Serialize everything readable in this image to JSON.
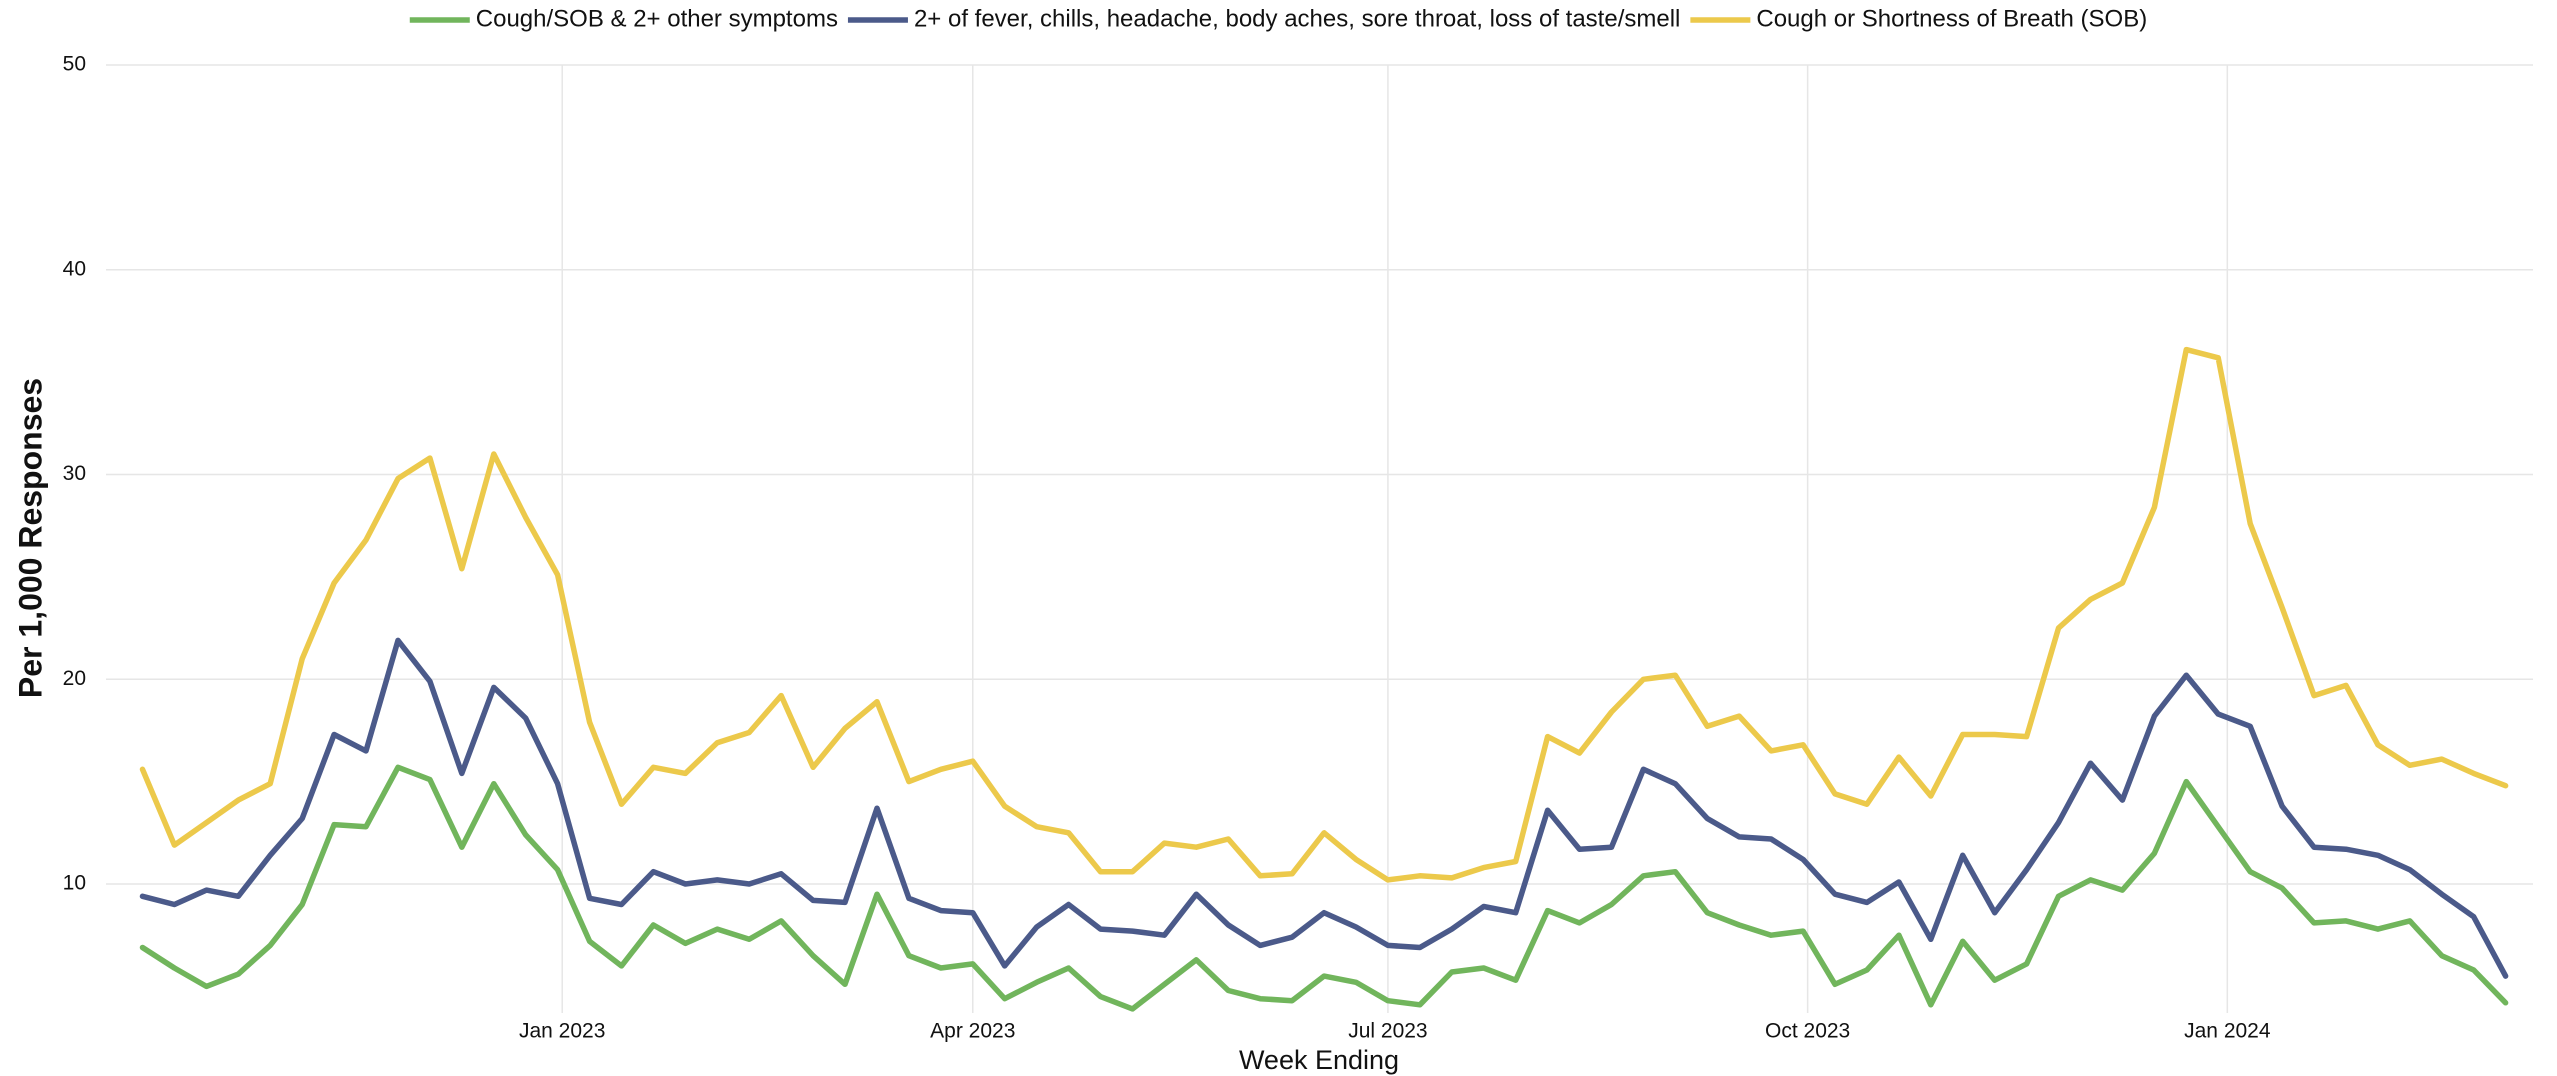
{
  "chart_data": {
    "type": "line",
    "x_label": "Week Ending",
    "y_label": "Per 1,000 Responses",
    "x": [
      "2022-10-01",
      "2022-10-08",
      "2022-10-15",
      "2022-10-22",
      "2022-10-29",
      "2022-11-05",
      "2022-11-12",
      "2022-11-19",
      "2022-11-26",
      "2022-12-03",
      "2022-12-10",
      "2022-12-17",
      "2022-12-24",
      "2022-12-31",
      "2023-01-07",
      "2023-01-14",
      "2023-01-21",
      "2023-01-28",
      "2023-02-04",
      "2023-02-11",
      "2023-02-18",
      "2023-02-25",
      "2023-03-04",
      "2023-03-11",
      "2023-03-18",
      "2023-03-25",
      "2023-04-01",
      "2023-04-08",
      "2023-04-15",
      "2023-04-22",
      "2023-04-29",
      "2023-05-06",
      "2023-05-13",
      "2023-05-20",
      "2023-05-27",
      "2023-06-03",
      "2023-06-10",
      "2023-06-17",
      "2023-06-24",
      "2023-07-01",
      "2023-07-08",
      "2023-07-15",
      "2023-07-22",
      "2023-07-29",
      "2023-08-05",
      "2023-08-12",
      "2023-08-19",
      "2023-08-26",
      "2023-09-02",
      "2023-09-09",
      "2023-09-16",
      "2023-09-23",
      "2023-09-30",
      "2023-10-07",
      "2023-10-14",
      "2023-10-21",
      "2023-10-28",
      "2023-11-04",
      "2023-11-11",
      "2023-11-18",
      "2023-11-25",
      "2023-12-02",
      "2023-12-09",
      "2023-12-16",
      "2023-12-23",
      "2023-12-30",
      "2024-01-06",
      "2024-01-13",
      "2024-01-20",
      "2024-01-27",
      "2024-02-03",
      "2024-02-10",
      "2024-02-17",
      "2024-02-24",
      "2024-03-02"
    ],
    "series": [
      {
        "name": "Cough/SOB & 2+ other symptoms",
        "color": "#71b55c",
        "values": [
          6.9,
          5.9,
          5.0,
          5.6,
          7.0,
          9.0,
          12.9,
          12.8,
          15.7,
          15.1,
          11.8,
          14.9,
          12.4,
          10.7,
          7.2,
          6.0,
          8.0,
          7.1,
          7.8,
          7.3,
          8.2,
          6.5,
          5.1,
          9.5,
          6.5,
          5.9,
          6.1,
          4.4,
          5.2,
          5.9,
          4.5,
          3.9,
          5.1,
          6.3,
          4.8,
          4.4,
          4.3,
          5.5,
          5.2,
          4.3,
          4.1,
          5.7,
          5.9,
          5.3,
          8.7,
          8.1,
          9.0,
          10.4,
          10.6,
          8.6,
          8.0,
          7.5,
          7.7,
          5.1,
          5.8,
          7.5,
          4.1,
          7.2,
          5.3,
          6.1,
          9.4,
          10.2,
          9.7,
          11.5,
          15.0,
          12.8,
          10.6,
          9.8,
          8.1,
          8.2,
          7.8,
          8.2,
          6.5,
          5.8,
          4.2
        ]
      },
      {
        "name": "2+ of fever, chills, headache, body aches, sore throat, loss of taste/smell",
        "color": "#4b5a8a",
        "values": [
          9.4,
          9.0,
          9.7,
          9.4,
          11.4,
          13.2,
          17.3,
          16.5,
          21.9,
          19.9,
          15.4,
          19.6,
          18.1,
          14.9,
          9.3,
          9.0,
          10.6,
          10.0,
          10.2,
          10.0,
          10.5,
          9.2,
          9.1,
          13.7,
          9.3,
          8.7,
          8.6,
          6.0,
          7.9,
          9.0,
          7.8,
          7.7,
          7.5,
          9.5,
          8.0,
          7.0,
          7.4,
          8.6,
          7.9,
          7.0,
          6.9,
          7.8,
          8.9,
          8.6,
          13.6,
          11.7,
          11.8,
          15.6,
          14.9,
          13.2,
          12.3,
          12.2,
          11.2,
          9.5,
          9.1,
          10.1,
          7.3,
          11.4,
          8.6,
          10.7,
          13.0,
          15.9,
          14.1,
          18.2,
          20.2,
          18.3,
          17.7,
          13.8,
          11.8,
          11.7,
          11.4,
          10.7,
          9.5,
          8.4,
          5.5
        ]
      },
      {
        "name": "Cough or Shortness of Breath (SOB)",
        "color": "#ecc94b",
        "values": [
          15.6,
          11.9,
          13.0,
          14.1,
          14.9,
          21.0,
          24.7,
          26.8,
          29.8,
          30.8,
          25.4,
          31.0,
          27.9,
          25.1,
          17.9,
          13.9,
          15.7,
          15.4,
          16.9,
          17.4,
          19.2,
          15.7,
          17.6,
          18.9,
          15.0,
          15.6,
          16.0,
          13.8,
          12.8,
          12.5,
          10.6,
          10.6,
          12.0,
          11.8,
          12.2,
          10.4,
          10.5,
          12.5,
          11.2,
          10.2,
          10.4,
          10.3,
          10.8,
          11.1,
          17.2,
          16.4,
          18.4,
          20.0,
          20.2,
          17.7,
          18.2,
          16.5,
          16.8,
          14.4,
          13.9,
          16.2,
          14.3,
          17.3,
          17.3,
          17.2,
          22.5,
          23.9,
          24.7,
          28.4,
          36.1,
          35.7,
          27.6,
          23.5,
          19.2,
          19.7,
          16.8,
          15.8,
          16.1,
          15.4,
          14.8
        ]
      }
    ],
    "xlim": [
      "2022-09-23",
      "2024-03-08"
    ],
    "xticks": [
      {
        "value": "2023-01-01",
        "label": "Jan 2023"
      },
      {
        "value": "2023-04-01",
        "label": "Apr 2023"
      },
      {
        "value": "2023-07-01",
        "label": "Jul 2023"
      },
      {
        "value": "2023-10-01",
        "label": "Oct 2023"
      },
      {
        "value": "2024-01-01",
        "label": "Jan 2024"
      }
    ],
    "ylim": [
      3.7,
      50
    ],
    "yticks": [
      10,
      20,
      30,
      40,
      50
    ],
    "grid": true,
    "legend": "top"
  }
}
